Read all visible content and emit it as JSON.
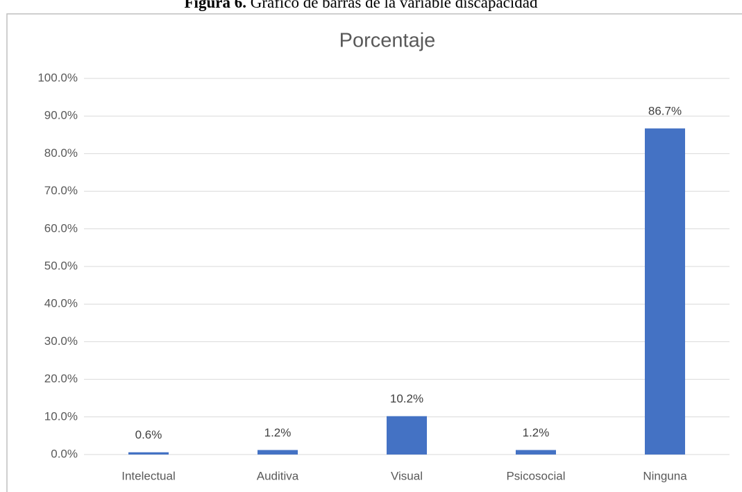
{
  "chart_data": {
    "type": "bar",
    "caption_label": "Figura 6.",
    "caption": "Gráfico de barras de la variable discapacidad",
    "title": "Porcentaje",
    "categories": [
      "Intelectual",
      "Auditiva",
      "Visual",
      "Psicosocial",
      "Ninguna"
    ],
    "values": [
      0.6,
      1.2,
      10.2,
      1.2,
      86.7
    ],
    "value_labels": [
      "0.6%",
      "1.2%",
      "10.2%",
      "1.2%",
      "86.7%"
    ],
    "color": "#4472c4",
    "ylim": [
      0,
      100
    ],
    "yticks": [
      {
        "value": 0,
        "label": "0.0%"
      },
      {
        "value": 10,
        "label": "10.0%"
      },
      {
        "value": 20,
        "label": "20.0%"
      },
      {
        "value": 30,
        "label": "30.0%"
      },
      {
        "value": 40,
        "label": "40.0%"
      },
      {
        "value": 50,
        "label": "50.0%"
      },
      {
        "value": 60,
        "label": "60.0%"
      },
      {
        "value": 70,
        "label": "70.0%"
      },
      {
        "value": 80,
        "label": "80.0%"
      },
      {
        "value": 90,
        "label": "90.0%"
      },
      {
        "value": 100,
        "label": "100.0%"
      }
    ],
    "grid": true
  }
}
